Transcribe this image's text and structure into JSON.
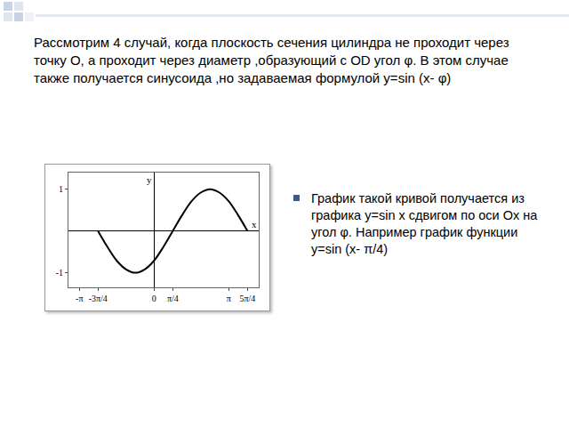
{
  "header": {
    "text": "Рассмотрим 4 случай, когда плоскость сечения цилиндра не проходит через точку О, а проходит через диаметр ,образующий с OD угол φ. В этом случае также получается синусоида ,но задаваемая формулой y=sin (x- φ)"
  },
  "bullets": [
    "График такой кривой получается из графика y=sin x сдвигом по оси Ox на угол φ. Например график функции y=sin (x- π/4)"
  ],
  "chart_data": {
    "type": "line",
    "color": "#000000",
    "grid": false,
    "xlabel": "x",
    "ylabel": "y",
    "x": [
      -2.356,
      -1.963,
      -1.571,
      -1.178,
      -0.785,
      -0.393,
      0,
      0.393,
      0.785,
      1.178,
      1.571,
      1.963,
      2.356,
      2.749,
      3.142,
      3.534,
      3.927
    ],
    "values": [
      0,
      -0.38,
      -0.71,
      -0.92,
      -1,
      -0.92,
      -0.71,
      -0.38,
      0,
      0.38,
      0.71,
      0.92,
      1,
      0.92,
      0.71,
      0.38,
      0
    ],
    "xlim": [
      -3.6,
      4.4
    ],
    "ylim": [
      -1.35,
      1.4
    ],
    "xticks": [
      {
        "value": -3.1416,
        "label": "-π"
      },
      {
        "value": -2.3562,
        "label": "-3π/4"
      },
      0,
      {
        "value": 0.7854,
        "label": "π/4"
      },
      {
        "value": 3.1416,
        "label": "π"
      },
      {
        "value": 3.927,
        "label": "5π/4"
      }
    ],
    "yticks": [
      -1,
      1
    ]
  }
}
